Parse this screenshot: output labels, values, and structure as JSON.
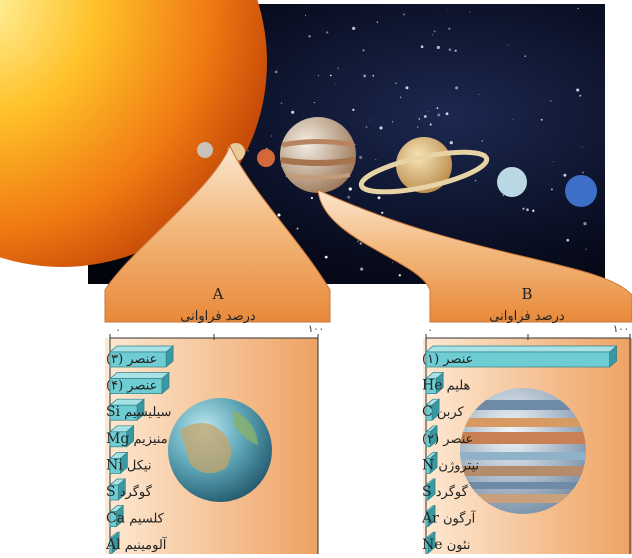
{
  "panel_a": {
    "letter": "A",
    "title": "درصد فراوانی",
    "axis_min": "۰",
    "axis_max": "۱۰۰",
    "rows": [
      {
        "symbol": "",
        "name": "عنصر (۳)",
        "value": 27
      },
      {
        "symbol": "",
        "name": "عنصر (۴)",
        "value": 25
      },
      {
        "symbol": "Si",
        "name": "سیلیسیم",
        "value": 13
      },
      {
        "symbol": "Mg",
        "name": "منیزیم",
        "value": 8
      },
      {
        "symbol": "Ni",
        "name": "نیکل",
        "value": 5
      },
      {
        "symbol": "S",
        "name": "گوگرد",
        "value": 4
      },
      {
        "symbol": "Ca",
        "name": "کلسیم",
        "value": 3
      },
      {
        "symbol": "Al",
        "name": "آلومینیم",
        "value": 1
      }
    ]
  },
  "panel_b": {
    "letter": "B",
    "title": "درصد فراوانی",
    "axis_min": "۰",
    "axis_max": "۱۰۰",
    "rows": [
      {
        "symbol": "",
        "name": "عنصر (۱)",
        "value": 90
      },
      {
        "symbol": "He",
        "name": "هلیم",
        "value": 5
      },
      {
        "symbol": "C",
        "name": "کربن",
        "value": 3
      },
      {
        "symbol": "",
        "name": "عنصر (۲)",
        "value": 2
      },
      {
        "symbol": "N",
        "name": "نیتروژن",
        "value": 2
      },
      {
        "symbol": "S",
        "name": "گوگرد",
        "value": 1
      },
      {
        "symbol": "Ar",
        "name": "آرگون",
        "value": 1
      },
      {
        "symbol": "Ne",
        "name": "نئون",
        "value": 1
      }
    ]
  },
  "colors": {
    "bar_front": "#6ecdd3",
    "bar_top": "#a7e3e6",
    "bar_side": "#3a98a1",
    "panel_light": "#fbe1c5",
    "panel_dark": "#e58a3c"
  },
  "icons": [
    "sun",
    "mercury",
    "venus",
    "earth",
    "mars",
    "jupiter",
    "saturn",
    "uranus",
    "neptune"
  ]
}
